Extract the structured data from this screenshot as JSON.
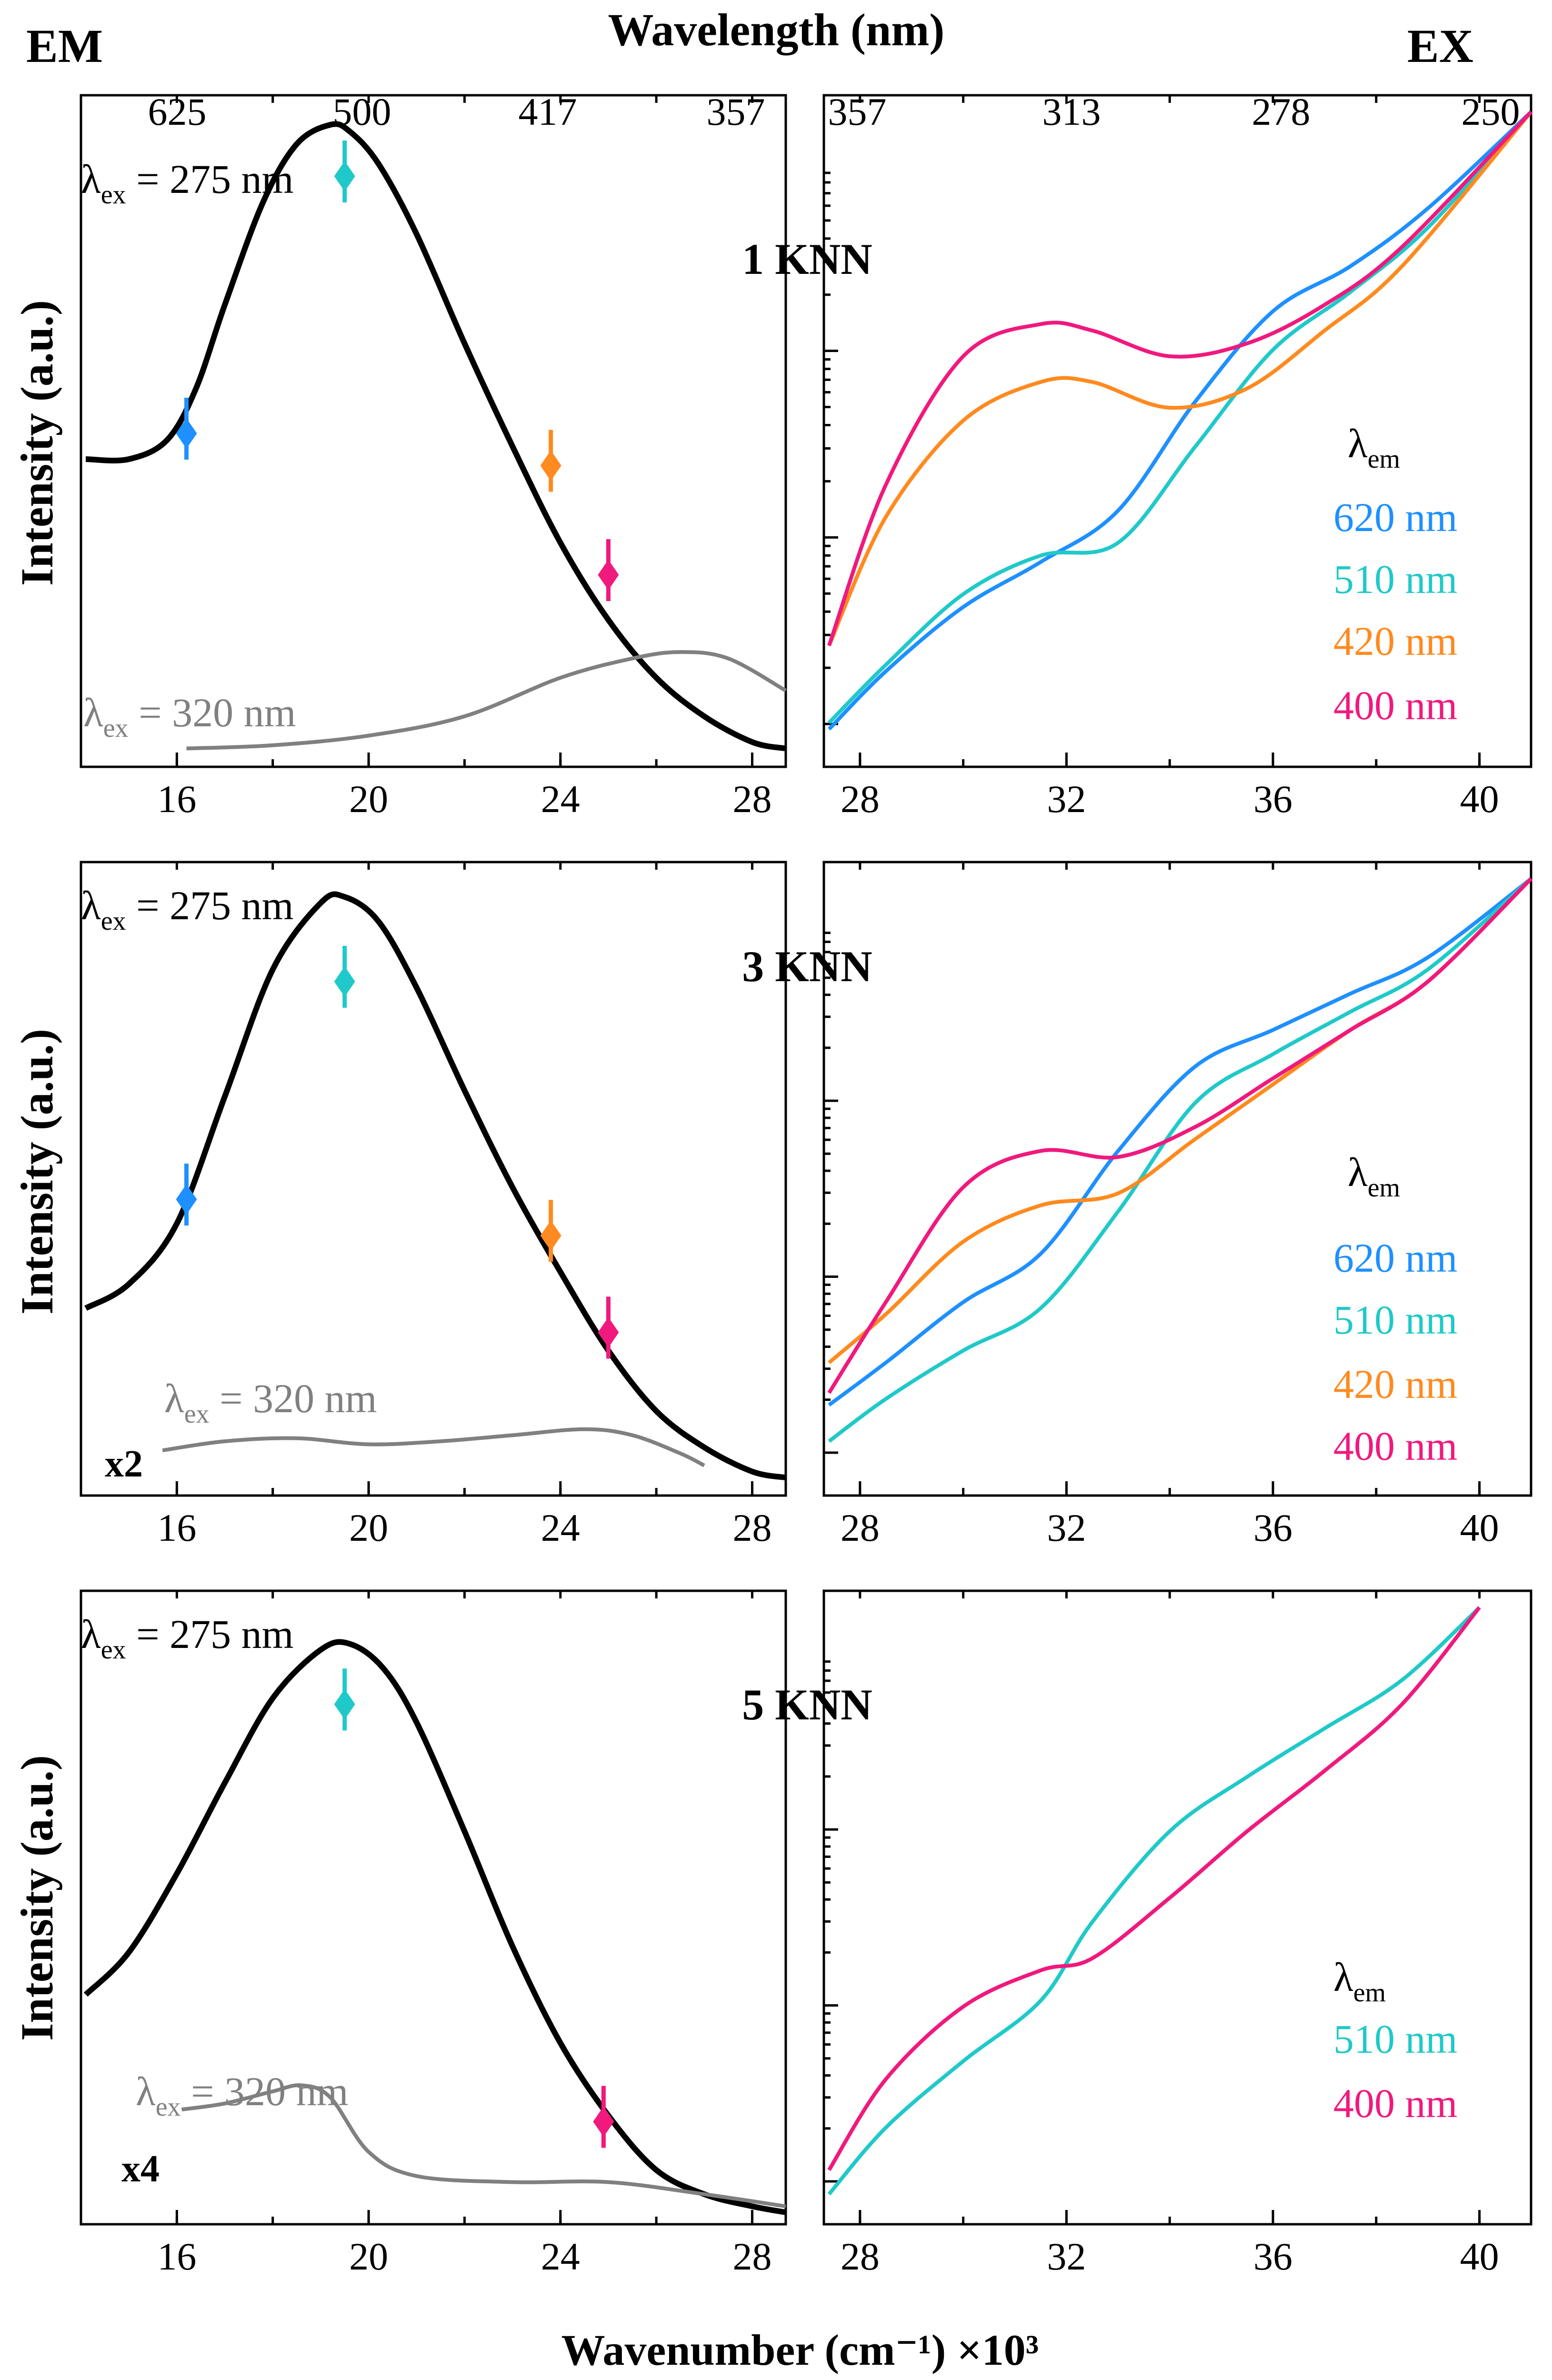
{
  "figure": {
    "em_label": "EM",
    "ex_label": "EX",
    "top_axis_title": "Wavelength (nm)",
    "bottom_axis_title": "Wavenumber (cm⁻¹) ×10³",
    "y_axis_title": "Intensity (a.u.)",
    "em_top_ticks": [
      "625",
      "500",
      "417",
      "357"
    ],
    "ex_top_ticks": [
      "357",
      "313",
      "278",
      "250"
    ],
    "colors": {
      "black": "#000000",
      "gray": "#808080",
      "blue": "#1E90FF",
      "cyan": "#20C9C9",
      "orange": "#FF8A1F",
      "pink": "#F0197D"
    }
  },
  "panels": [
    {
      "sample": "1 KNN",
      "em_ex_label": "λex = 275 nm",
      "em_ex_label2": "λex = 320 nm",
      "em_mult": "",
      "ex_legend_title": "λem",
      "ex_legend": [
        "620 nm",
        "510 nm",
        "420 nm",
        "400 nm"
      ]
    },
    {
      "sample": "3 KNN",
      "em_ex_label": "λex = 275 nm",
      "em_ex_label2": "λex = 320 nm",
      "em_mult": "x2",
      "ex_legend_title": "λem",
      "ex_legend": [
        "620 nm",
        "510 nm",
        "420 nm",
        "400 nm"
      ]
    },
    {
      "sample": "5 KNN",
      "em_ex_label": "λex = 275 nm",
      "em_ex_label2": "λex = 320 nm",
      "em_mult": "x4",
      "ex_legend_title": "λem",
      "ex_legend": [
        "510 nm",
        "400 nm"
      ]
    }
  ],
  "chart_data": [
    {
      "type": "line",
      "panel": "1 KNN emission",
      "xlabel": "Wavenumber (cm⁻¹) ×10³",
      "ylabel": "Intensity (a.u.)",
      "xlim": [
        14,
        28.7
      ],
      "ylim": [
        0,
        1
      ],
      "x_ticks": [
        16,
        20,
        24,
        28
      ],
      "series": [
        {
          "name": "λex = 275 nm",
          "color": "#000000",
          "x": [
            14.1,
            15.0,
            15.8,
            16.4,
            17.0,
            17.8,
            18.5,
            19.2,
            19.6,
            20.2,
            21.0,
            22.0,
            23.0,
            24.0,
            25.0,
            26.0,
            27.0,
            28.0,
            28.7
          ],
          "y": [
            0.46,
            0.46,
            0.49,
            0.57,
            0.7,
            0.86,
            0.95,
            0.98,
            0.97,
            0.92,
            0.81,
            0.64,
            0.48,
            0.33,
            0.21,
            0.12,
            0.06,
            0.02,
            0.01
          ]
        },
        {
          "name": "λex = 320 nm",
          "color": "#808080",
          "x": [
            16.2,
            18.0,
            20.0,
            22.0,
            24.0,
            25.5,
            26.5,
            27.5,
            28.7
          ],
          "y": [
            0.01,
            0.015,
            0.03,
            0.06,
            0.12,
            0.15,
            0.16,
            0.15,
            0.1
          ]
        }
      ],
      "markers": [
        {
          "x": 16.2,
          "y": 0.5,
          "color": "#1E90FF"
        },
        {
          "x": 19.5,
          "y": 0.9,
          "color": "#20C9C9"
        },
        {
          "x": 23.8,
          "y": 0.45,
          "color": "#FF8A1F"
        },
        {
          "x": 25.0,
          "y": 0.28,
          "color": "#F0197D"
        }
      ]
    },
    {
      "type": "line",
      "panel": "1 KNN excitation",
      "xlim": [
        27.3,
        41
      ],
      "x_ticks": [
        28,
        32,
        36,
        40
      ],
      "yscale": "log",
      "series": [
        {
          "name": "620 nm",
          "color": "#1E90FF",
          "x": [
            27.4,
            28.5,
            30.0,
            31.5,
            33.0,
            34.5,
            36.0,
            37.5,
            39.0,
            41.0
          ],
          "y": [
            0.04,
            0.13,
            0.23,
            0.3,
            0.38,
            0.55,
            0.69,
            0.76,
            0.85,
            1.0
          ]
        },
        {
          "name": "510 nm",
          "color": "#20C9C9",
          "x": [
            27.4,
            28.5,
            30.0,
            31.5,
            33.0,
            34.5,
            36.0,
            37.5,
            39.0,
            41.0
          ],
          "y": [
            0.05,
            0.14,
            0.25,
            0.31,
            0.33,
            0.48,
            0.63,
            0.72,
            0.82,
            1.0
          ]
        },
        {
          "name": "420 nm",
          "color": "#FF8A1F",
          "x": [
            27.4,
            28.5,
            30.0,
            31.5,
            32.5,
            34.0,
            35.5,
            37.0,
            38.5,
            41.0
          ],
          "y": [
            0.17,
            0.37,
            0.52,
            0.58,
            0.58,
            0.54,
            0.57,
            0.66,
            0.76,
            1.0
          ]
        },
        {
          "name": "400 nm",
          "color": "#F0197D",
          "x": [
            27.4,
            28.5,
            30.0,
            31.5,
            32.5,
            34.0,
            35.5,
            37.0,
            38.5,
            41.0
          ],
          "y": [
            0.17,
            0.42,
            0.62,
            0.67,
            0.66,
            0.62,
            0.64,
            0.7,
            0.79,
            1.0
          ]
        }
      ]
    },
    {
      "type": "line",
      "panel": "3 KNN emission",
      "xlim": [
        14,
        28.7
      ],
      "ylim": [
        0,
        1
      ],
      "x_ticks": [
        16,
        20,
        24,
        28
      ],
      "series": [
        {
          "name": "λex = 275 nm",
          "color": "#000000",
          "x": [
            14.1,
            15.0,
            16.0,
            17.0,
            18.0,
            19.0,
            19.5,
            20.2,
            21.0,
            22.0,
            23.0,
            24.0,
            25.0,
            26.0,
            27.0,
            28.0,
            28.7
          ],
          "y": [
            0.29,
            0.33,
            0.43,
            0.64,
            0.85,
            0.96,
            0.97,
            0.93,
            0.82,
            0.65,
            0.49,
            0.35,
            0.22,
            0.12,
            0.06,
            0.02,
            0.01
          ]
        },
        {
          "name": "λex = 320 nm",
          "color": "#808080",
          "x": [
            15.7,
            17.0,
            18.5,
            20.0,
            21.5,
            23.0,
            24.5,
            25.5,
            26.5,
            27.0
          ],
          "y": [
            0.055,
            0.07,
            0.075,
            0.065,
            0.07,
            0.08,
            0.09,
            0.08,
            0.05,
            0.03
          ]
        }
      ],
      "markers": [
        {
          "x": 16.2,
          "y": 0.47,
          "color": "#1E90FF"
        },
        {
          "x": 19.5,
          "y": 0.83,
          "color": "#20C9C9"
        },
        {
          "x": 23.8,
          "y": 0.41,
          "color": "#FF8A1F"
        },
        {
          "x": 25.0,
          "y": 0.25,
          "color": "#F0197D"
        }
      ]
    },
    {
      "type": "line",
      "panel": "3 KNN excitation",
      "xlim": [
        27.3,
        41
      ],
      "x_ticks": [
        28,
        32,
        36,
        40
      ],
      "yscale": "log",
      "series": [
        {
          "name": "620 nm",
          "color": "#1E90FF",
          "x": [
            27.4,
            28.5,
            30.0,
            31.5,
            33.0,
            34.5,
            36.0,
            37.5,
            39.0,
            41.0
          ],
          "y": [
            0.13,
            0.2,
            0.3,
            0.38,
            0.55,
            0.69,
            0.75,
            0.81,
            0.87,
            1.0
          ]
        },
        {
          "name": "510 nm",
          "color": "#20C9C9",
          "x": [
            27.4,
            28.5,
            30.0,
            31.5,
            33.0,
            34.5,
            36.0,
            37.5,
            39.0,
            41.0
          ],
          "y": [
            0.07,
            0.14,
            0.22,
            0.29,
            0.45,
            0.63,
            0.71,
            0.78,
            0.85,
            1.0
          ]
        },
        {
          "name": "420 nm",
          "color": "#FF8A1F",
          "x": [
            27.4,
            28.5,
            30.0,
            31.5,
            33.0,
            34.5,
            36.0,
            37.5,
            39.0,
            41.0
          ],
          "y": [
            0.2,
            0.28,
            0.4,
            0.46,
            0.48,
            0.57,
            0.66,
            0.75,
            0.83,
            1.0
          ]
        },
        {
          "name": "400 nm",
          "color": "#F0197D",
          "x": [
            27.4,
            28.5,
            30.0,
            31.5,
            33.0,
            34.5,
            36.0,
            37.5,
            39.0,
            41.0
          ],
          "y": [
            0.15,
            0.3,
            0.49,
            0.55,
            0.54,
            0.59,
            0.67,
            0.75,
            0.83,
            1.0
          ]
        }
      ]
    },
    {
      "type": "line",
      "panel": "5 KNN emission",
      "xlim": [
        14,
        28.7
      ],
      "ylim": [
        0,
        1
      ],
      "x_ticks": [
        16,
        20,
        24,
        28
      ],
      "series": [
        {
          "name": "λex = 275 nm",
          "color": "#000000",
          "x": [
            14.1,
            15.0,
            16.0,
            17.0,
            18.0,
            19.0,
            19.6,
            20.3,
            21.0,
            22.0,
            23.0,
            24.0,
            25.0,
            26.0,
            27.0,
            28.0,
            28.7
          ],
          "y": [
            0.36,
            0.43,
            0.56,
            0.71,
            0.85,
            0.93,
            0.94,
            0.9,
            0.81,
            0.63,
            0.44,
            0.28,
            0.16,
            0.07,
            0.03,
            0.01,
            0.0
          ]
        },
        {
          "name": "λex = 320 nm",
          "color": "#808080",
          "x": [
            16.1,
            17.0,
            18.0,
            18.6,
            19.2,
            20.0,
            21.0,
            23.0,
            25.0,
            27.0,
            28.7
          ],
          "y": [
            0.17,
            0.18,
            0.2,
            0.21,
            0.19,
            0.1,
            0.06,
            0.05,
            0.05,
            0.03,
            0.01
          ]
        }
      ],
      "markers": [
        {
          "x": 19.5,
          "y": 0.84,
          "color": "#20C9C9"
        },
        {
          "x": 24.9,
          "y": 0.15,
          "color": "#F0197D"
        }
      ]
    },
    {
      "type": "line",
      "panel": "5 KNN excitation",
      "xlim": [
        27.3,
        41
      ],
      "x_ticks": [
        28,
        32,
        36,
        40
      ],
      "yscale": "log",
      "series": [
        {
          "name": "510 nm",
          "color": "#20C9C9",
          "x": [
            27.4,
            28.5,
            30.0,
            31.5,
            32.5,
            34.0,
            35.5,
            37.0,
            38.5,
            40.0
          ],
          "y": [
            0.03,
            0.14,
            0.25,
            0.35,
            0.48,
            0.63,
            0.72,
            0.8,
            0.88,
            1.0
          ]
        },
        {
          "name": "400 nm",
          "color": "#F0197D",
          "x": [
            27.4,
            28.5,
            30.0,
            31.5,
            32.5,
            34.0,
            35.5,
            37.0,
            38.5,
            40.0
          ],
          "y": [
            0.07,
            0.22,
            0.34,
            0.4,
            0.42,
            0.52,
            0.63,
            0.73,
            0.84,
            1.0
          ]
        }
      ]
    }
  ]
}
